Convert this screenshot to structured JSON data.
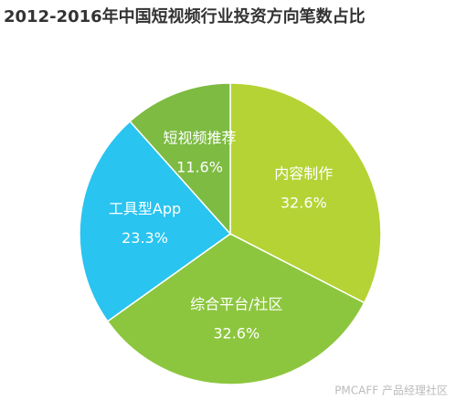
{
  "chart_data": {
    "type": "pie",
    "title": "2012-2016年中国短视频行业投资方向笔数占比",
    "categories": [
      "内容制作",
      "综合平台/社区",
      "工具型App",
      "短视频推荐"
    ],
    "values": [
      32.6,
      32.6,
      23.3,
      11.6
    ],
    "value_labels": [
      "32.6%",
      "32.6%",
      "23.3%",
      "11.6%"
    ],
    "colors": [
      "#b5d334",
      "#8cc63e",
      "#29c4f0",
      "#7dbb42"
    ],
    "watermark": "PMCAFF 产品经理社区"
  }
}
